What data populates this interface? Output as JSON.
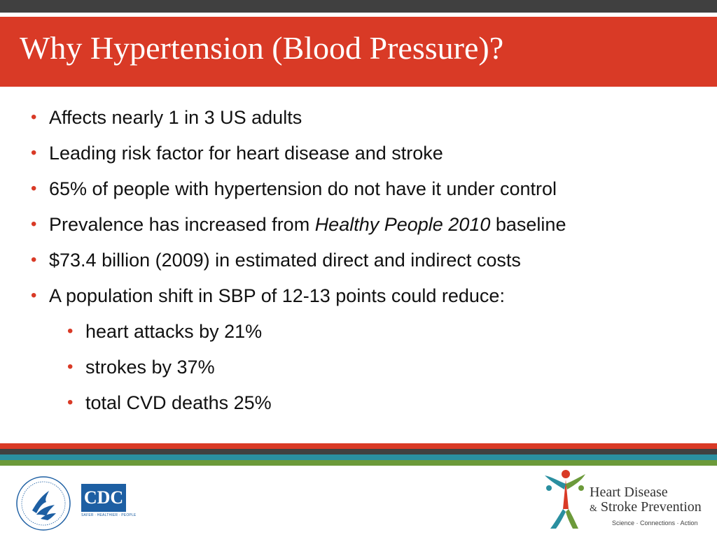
{
  "slide": {
    "title": "Why Hypertension (Blood Pressure)?",
    "bullets": [
      {
        "text": "Affects nearly 1 in 3 US adults"
      },
      {
        "text": "Leading risk factor for heart disease and stroke"
      },
      {
        "text": "65% of people with hypertension do not have it under control"
      },
      {
        "text_before": "Prevalence has increased from ",
        "text_italic": "Healthy People 2010",
        "text_after": " baseline"
      },
      {
        "text": "$73.4 billion (2009) in estimated direct and indirect costs"
      },
      {
        "text": "A population shift in SBP of 12-13 points could reduce:"
      }
    ],
    "sub_bullets": [
      {
        "text": "heart attacks by 21%"
      },
      {
        "text": "strokes by 37%"
      },
      {
        "text": "total CVD deaths 25%"
      }
    ],
    "bullet_glyph": "•"
  },
  "footer": {
    "stripe_colors": [
      "#d93a26",
      "#404040",
      "#2a8fa0",
      "#6c9a3a"
    ],
    "cdc_logo_text": "CDC",
    "cdc_tagline": "SAFER · HEALTHIER · PEOPLE",
    "hdsp_line1": "Heart Disease",
    "hdsp_amp": "&",
    "hdsp_line2": " Stroke Prevention",
    "hdsp_tagline": "Science · Connections · Action"
  },
  "colors": {
    "accent_red": "#d93a26",
    "dark_gray": "#404040",
    "teal": "#2a8fa0",
    "green": "#6c9a3a",
    "cdc_blue": "#1d5fa3"
  }
}
